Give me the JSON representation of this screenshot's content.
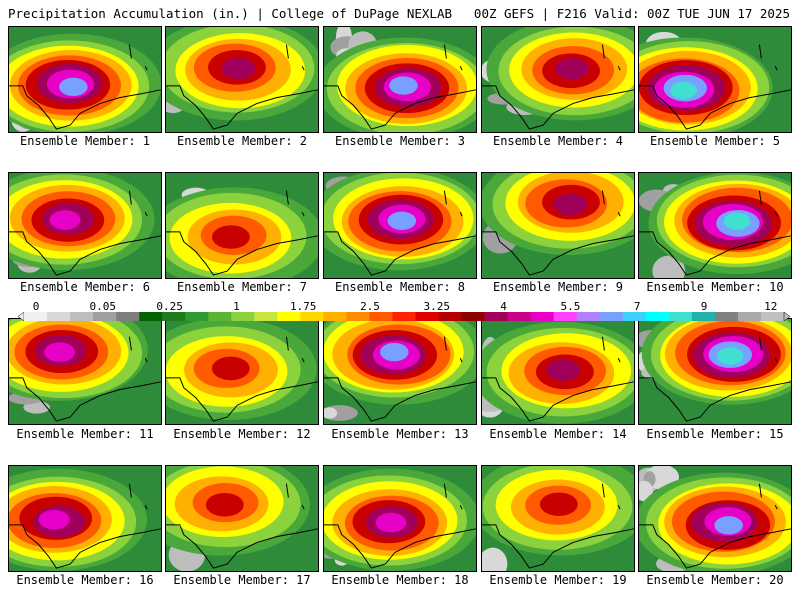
{
  "header": {
    "left": "Precipitation Accumulation (in.) | College of DuPage NEXLAB",
    "right": "00Z GEFS | F216 Valid: 00Z TUE JUN 17 2025"
  },
  "legend": {
    "tick_labels": [
      "0",
      "0.05",
      "0.25",
      "1",
      "1.75",
      "2.5",
      "3.25",
      "4",
      "5.5",
      "7",
      "9",
      "12"
    ],
    "colors": [
      "#f0f0f0",
      "#d8d8d8",
      "#bdbdbd",
      "#a0a0a0",
      "#7f7f7f",
      "#006400",
      "#1e7b1e",
      "#2f9a2f",
      "#5ab432",
      "#8cd23c",
      "#c8e640",
      "#ffff00",
      "#ffd700",
      "#ffb000",
      "#ff8c00",
      "#ff5a00",
      "#ff2400",
      "#e00000",
      "#b40000",
      "#8c0000",
      "#a0005a",
      "#c8008c",
      "#e600c8",
      "#ff40ff",
      "#b080ff",
      "#7aa0ff",
      "#40d0ff",
      "#00ffff",
      "#40e0d0",
      "#20b2aa",
      "#808080",
      "#a9a9a9",
      "#c0c0c0"
    ]
  },
  "panels": [
    {
      "label": "Ensemble Member: 1"
    },
    {
      "label": "Ensemble Member: 2"
    },
    {
      "label": "Ensemble Member: 3"
    },
    {
      "label": "Ensemble Member: 4"
    },
    {
      "label": "Ensemble Member: 5"
    },
    {
      "label": "Ensemble Member: 6"
    },
    {
      "label": "Ensemble Member: 7"
    },
    {
      "label": "Ensemble Member: 8"
    },
    {
      "label": "Ensemble Member: 9"
    },
    {
      "label": "Ensemble Member: 10"
    },
    {
      "label": "Ensemble Member: 11"
    },
    {
      "label": "Ensemble Member: 12"
    },
    {
      "label": "Ensemble Member: 13"
    },
    {
      "label": "Ensemble Member: 14"
    },
    {
      "label": "Ensemble Member: 15"
    },
    {
      "label": "Ensemble Member: 16"
    },
    {
      "label": "Ensemble Member: 17"
    },
    {
      "label": "Ensemble Member: 18"
    },
    {
      "label": "Ensemble Member: 19"
    },
    {
      "label": "Ensemble Member: 20"
    }
  ]
}
